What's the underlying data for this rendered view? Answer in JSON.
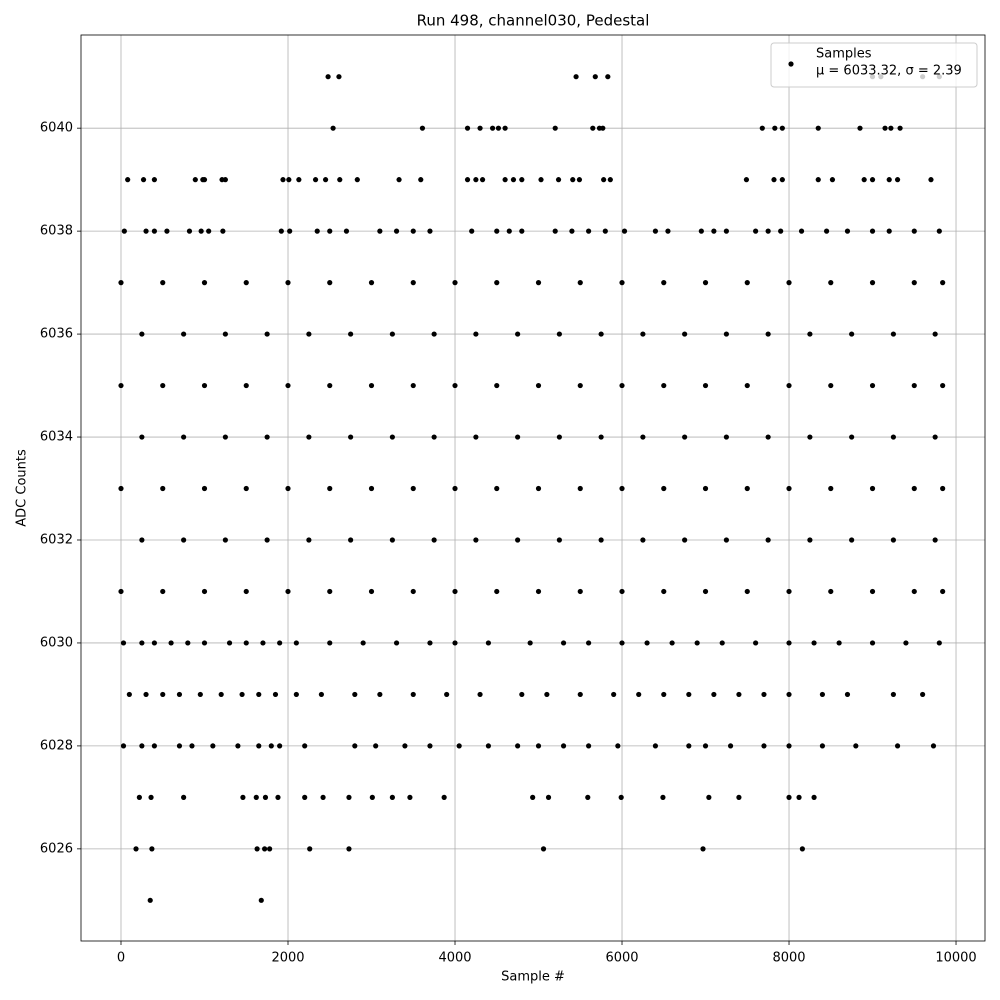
{
  "chart_data": {
    "type": "scatter",
    "title": "Run 498, channel030, Pedestal",
    "x_label": "Sample #",
    "y_label": "ADC Counts",
    "xlim": [
      -479,
      10347
    ],
    "ylim": [
      6024.21,
      6041.81
    ],
    "xticks": [
      0,
      2000,
      4000,
      6000,
      8000,
      10000
    ],
    "yticks": [
      6026,
      6028,
      6030,
      6032,
      6034,
      6036,
      6038,
      6040
    ],
    "grid": true,
    "legend_position": "upper right",
    "legend_note": "μ = 6033.32, σ = 2.39",
    "x": [
      2480,
      2610,
      5450,
      5680,
      5830,
      9000,
      9100,
      9600,
      9800,
      2540,
      3610,
      4150,
      4300,
      4450,
      4520,
      4600,
      5200,
      5650,
      5730,
      5770,
      7680,
      7830,
      7920,
      8350,
      8850,
      9150,
      9220,
      9330,
      80,
      270,
      400,
      890,
      980,
      1000,
      1210,
      1250,
      1940,
      2010,
      2130,
      2330,
      2450,
      2620,
      2830,
      3330,
      3590,
      4150,
      4250,
      4330,
      4600,
      4700,
      4800,
      5030,
      5240,
      5410,
      5490,
      5780,
      5860,
      7490,
      7820,
      7920,
      8350,
      8520,
      8900,
      9000,
      9200,
      9300,
      9700,
      40,
      300,
      400,
      550,
      820,
      960,
      1050,
      1220,
      1920,
      2020,
      2350,
      2500,
      2700,
      3100,
      3300,
      3500,
      3700,
      4200,
      4500,
      4650,
      4800,
      5200,
      5400,
      5600,
      5800,
      6030,
      6400,
      6550,
      6950,
      7100,
      7250,
      7600,
      7750,
      7900,
      8150,
      8450,
      8700,
      9000,
      9200,
      9500,
      9800,
      0,
      500,
      1000,
      1500,
      2000,
      2500,
      3000,
      3500,
      4000,
      4500,
      5000,
      5500,
      6000,
      6500,
      7000,
      7500,
      8000,
      8500,
      9000,
      9500,
      9840,
      250,
      750,
      1250,
      1750,
      2250,
      2750,
      3250,
      3750,
      4250,
      4750,
      5250,
      5750,
      6250,
      6750,
      7250,
      7750,
      8250,
      8750,
      9250,
      9750,
      0,
      500,
      1000,
      1500,
      2000,
      2500,
      3000,
      3500,
      4000,
      4500,
      5000,
      5500,
      6000,
      6500,
      7000,
      7500,
      8000,
      8500,
      9000,
      9500,
      9840,
      250,
      750,
      1250,
      1750,
      2250,
      2750,
      3250,
      3750,
      4250,
      4750,
      5250,
      5750,
      6250,
      6750,
      7250,
      7750,
      8250,
      8750,
      9250,
      9750,
      0,
      500,
      1000,
      1500,
      2000,
      2500,
      3000,
      3500,
      4000,
      4500,
      5000,
      5500,
      6000,
      6500,
      7000,
      7500,
      8000,
      8500,
      9000,
      9500,
      9840,
      250,
      750,
      1250,
      1750,
      2250,
      2750,
      3250,
      3750,
      4250,
      4750,
      5250,
      5750,
      6250,
      6750,
      7250,
      7750,
      8250,
      8750,
      9250,
      9750,
      0,
      500,
      1000,
      1500,
      2000,
      2500,
      3000,
      3500,
      4000,
      4500,
      5000,
      5500,
      6000,
      6500,
      7000,
      7500,
      8000,
      8500,
      9000,
      9500,
      9840,
      30,
      250,
      400,
      600,
      800,
      1000,
      1300,
      1500,
      1700,
      1900,
      2100,
      2500,
      2900,
      3300,
      3700,
      4000,
      4400,
      4900,
      5300,
      5600,
      6000,
      6300,
      6600,
      6900,
      7200,
      7600,
      8000,
      8300,
      8600,
      9000,
      9400,
      9800,
      100,
      300,
      500,
      700,
      950,
      1200,
      1450,
      1650,
      1850,
      2100,
      2400,
      2800,
      3100,
      3500,
      3900,
      4300,
      4800,
      5100,
      5500,
      5900,
      6200,
      6500,
      6800,
      7100,
      7400,
      7700,
      8000,
      8400,
      8700,
      9250,
      9600,
      30,
      250,
      400,
      700,
      850,
      1100,
      1400,
      1650,
      1800,
      1900,
      2200,
      2800,
      3050,
      3400,
      3700,
      4050,
      4400,
      4750,
      5000,
      5300,
      5600,
      5950,
      6400,
      6800,
      7000,
      7300,
      7700,
      8000,
      8400,
      8800,
      9300,
      9730,
      220,
      360,
      750,
      1460,
      1620,
      1730,
      1880,
      2200,
      2420,
      2730,
      3010,
      3250,
      3460,
      3870,
      4930,
      5120,
      5590,
      5990,
      6490,
      7040,
      7400,
      8000,
      8120,
      8300,
      180,
      370,
      1630,
      1720,
      1780,
      2260,
      2730,
      5060,
      6970,
      8160,
      350,
      1680
    ],
    "series": [
      {
        "name": "Samples",
        "color": "#000000",
        "values": [
          6041,
          6041,
          6041,
          6041,
          6041,
          6041,
          6041,
          6041,
          6041,
          6040,
          6040,
          6040,
          6040,
          6040,
          6040,
          6040,
          6040,
          6040,
          6040,
          6040,
          6040,
          6040,
          6040,
          6040,
          6040,
          6040,
          6040,
          6040,
          6039,
          6039,
          6039,
          6039,
          6039,
          6039,
          6039,
          6039,
          6039,
          6039,
          6039,
          6039,
          6039,
          6039,
          6039,
          6039,
          6039,
          6039,
          6039,
          6039,
          6039,
          6039,
          6039,
          6039,
          6039,
          6039,
          6039,
          6039,
          6039,
          6039,
          6039,
          6039,
          6039,
          6039,
          6039,
          6039,
          6039,
          6039,
          6039,
          6038,
          6038,
          6038,
          6038,
          6038,
          6038,
          6038,
          6038,
          6038,
          6038,
          6038,
          6038,
          6038,
          6038,
          6038,
          6038,
          6038,
          6038,
          6038,
          6038,
          6038,
          6038,
          6038,
          6038,
          6038,
          6038,
          6038,
          6038,
          6038,
          6038,
          6038,
          6038,
          6038,
          6038,
          6038,
          6038,
          6038,
          6038,
          6038,
          6038,
          6038,
          6037,
          6037,
          6037,
          6037,
          6037,
          6037,
          6037,
          6037,
          6037,
          6037,
          6037,
          6037,
          6037,
          6037,
          6037,
          6037,
          6037,
          6037,
          6037,
          6037,
          6037,
          6036,
          6036,
          6036,
          6036,
          6036,
          6036,
          6036,
          6036,
          6036,
          6036,
          6036,
          6036,
          6036,
          6036,
          6036,
          6036,
          6036,
          6036,
          6036,
          6036,
          6035,
          6035,
          6035,
          6035,
          6035,
          6035,
          6035,
          6035,
          6035,
          6035,
          6035,
          6035,
          6035,
          6035,
          6035,
          6035,
          6035,
          6035,
          6035,
          6035,
          6035,
          6034,
          6034,
          6034,
          6034,
          6034,
          6034,
          6034,
          6034,
          6034,
          6034,
          6034,
          6034,
          6034,
          6034,
          6034,
          6034,
          6034,
          6034,
          6034,
          6034,
          6033,
          6033,
          6033,
          6033,
          6033,
          6033,
          6033,
          6033,
          6033,
          6033,
          6033,
          6033,
          6033,
          6033,
          6033,
          6033,
          6033,
          6033,
          6033,
          6033,
          6033,
          6032,
          6032,
          6032,
          6032,
          6032,
          6032,
          6032,
          6032,
          6032,
          6032,
          6032,
          6032,
          6032,
          6032,
          6032,
          6032,
          6032,
          6032,
          6032,
          6032,
          6031,
          6031,
          6031,
          6031,
          6031,
          6031,
          6031,
          6031,
          6031,
          6031,
          6031,
          6031,
          6031,
          6031,
          6031,
          6031,
          6031,
          6031,
          6031,
          6031,
          6031,
          6030,
          6030,
          6030,
          6030,
          6030,
          6030,
          6030,
          6030,
          6030,
          6030,
          6030,
          6030,
          6030,
          6030,
          6030,
          6030,
          6030,
          6030,
          6030,
          6030,
          6030,
          6030,
          6030,
          6030,
          6030,
          6030,
          6030,
          6030,
          6030,
          6030,
          6030,
          6030,
          6029,
          6029,
          6029,
          6029,
          6029,
          6029,
          6029,
          6029,
          6029,
          6029,
          6029,
          6029,
          6029,
          6029,
          6029,
          6029,
          6029,
          6029,
          6029,
          6029,
          6029,
          6029,
          6029,
          6029,
          6029,
          6029,
          6029,
          6029,
          6029,
          6029,
          6029,
          6028,
          6028,
          6028,
          6028,
          6028,
          6028,
          6028,
          6028,
          6028,
          6028,
          6028,
          6028,
          6028,
          6028,
          6028,
          6028,
          6028,
          6028,
          6028,
          6028,
          6028,
          6028,
          6028,
          6028,
          6028,
          6028,
          6028,
          6028,
          6028,
          6028,
          6028,
          6028,
          6027,
          6027,
          6027,
          6027,
          6027,
          6027,
          6027,
          6027,
          6027,
          6027,
          6027,
          6027,
          6027,
          6027,
          6027,
          6027,
          6027,
          6027,
          6027,
          6027,
          6027,
          6027,
          6027,
          6027,
          6026,
          6026,
          6026,
          6026,
          6026,
          6026,
          6026,
          6026,
          6026,
          6026,
          6025,
          6025
        ]
      }
    ]
  }
}
